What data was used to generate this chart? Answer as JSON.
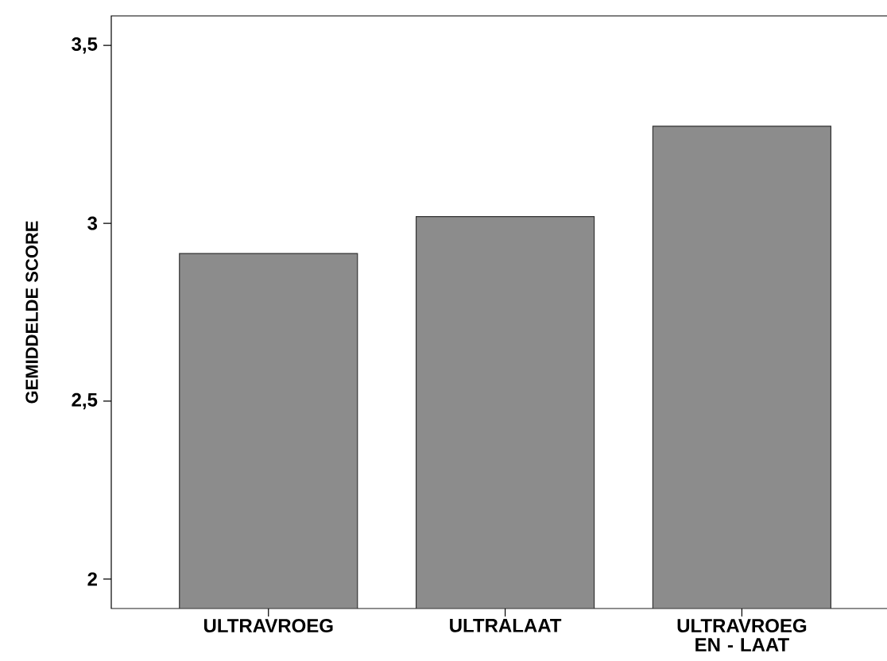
{
  "chart_data": {
    "type": "bar",
    "ylabel": "GEMIDDELDE SCORE",
    "categories": [
      "ULTRAVROEG",
      "ULTRALAAT",
      "ULTRAVROEG EN - LAAT"
    ],
    "values": [
      2.915,
      3.019,
      3.273
    ],
    "color": "#8c8c8c",
    "ylim": [
      1.917,
      3.583
    ],
    "yticks": [
      2,
      {
        "value": 2.5,
        "label": "2,5"
      },
      3,
      {
        "value": 3.5,
        "label": "3,5"
      }
    ],
    "grid": false
  }
}
